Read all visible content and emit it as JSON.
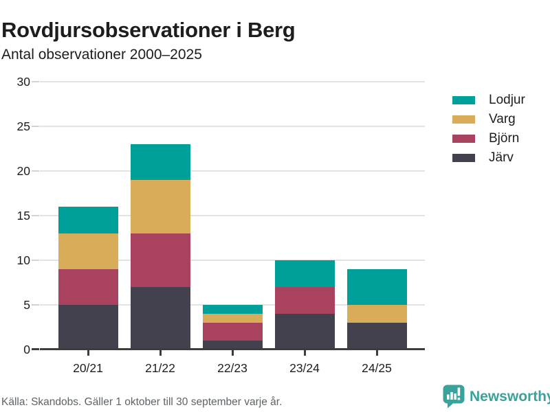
{
  "header": {
    "title": "Rovdjursobservationer i Berg",
    "subtitle": "Antal observationer 2000–2025"
  },
  "chart_data": {
    "type": "bar",
    "stacked": true,
    "title": "Rovdjursobservationer i Berg",
    "subtitle": "Antal observationer 2000–2025",
    "categories": [
      "20/21",
      "21/22",
      "22/23",
      "23/24",
      "24/25"
    ],
    "series": [
      {
        "name": "Järv",
        "color": "#44414f",
        "values": [
          5,
          7,
          1,
          4,
          3
        ]
      },
      {
        "name": "Björn",
        "color": "#a8425f",
        "values": [
          4,
          6,
          2,
          3,
          0
        ]
      },
      {
        "name": "Varg",
        "color": "#d9ac5a",
        "values": [
          4,
          6,
          1,
          0,
          2
        ]
      },
      {
        "name": "Lodjur",
        "color": "#00a09a",
        "values": [
          3,
          4,
          1,
          3,
          4
        ]
      }
    ],
    "totals": [
      16,
      23,
      5,
      10,
      9
    ],
    "legend_order": [
      "Lodjur",
      "Varg",
      "Björn",
      "Järv"
    ],
    "legend_position": "right",
    "grid": true,
    "ylim": [
      0,
      30
    ],
    "yticks": [
      0,
      5,
      10,
      15,
      20,
      25,
      30
    ]
  },
  "colors": {
    "gridline": "#e3e3e3",
    "axis": "#3d3d3d",
    "text": "#1d1d1b",
    "footer_text": "#5d6367",
    "brand_teal": "#38a39a"
  },
  "footer": {
    "source": "Källa: Skandobs. Gäller 1 oktober till 30 september varje år.",
    "brand": "Newsworthy"
  }
}
